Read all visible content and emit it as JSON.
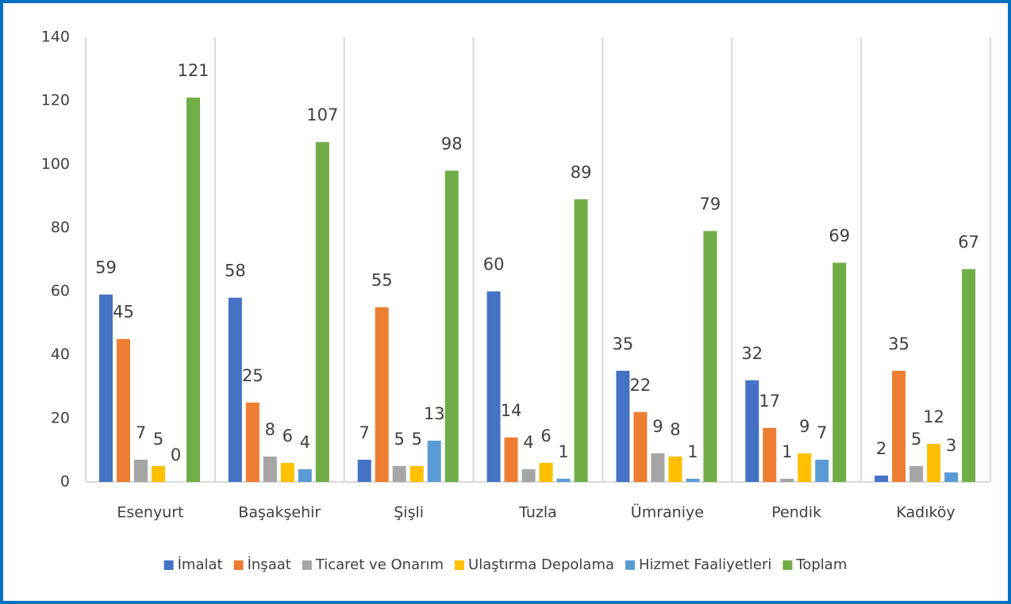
{
  "chart_data": {
    "type": "bar",
    "categories": [
      "Esenyurt",
      "Başakşehir",
      "Şişli",
      "Tuzla",
      "Ümraniye",
      "Pendik",
      "Kadıköy"
    ],
    "series": [
      {
        "name": "İmalat",
        "color": "#4472c4",
        "values": [
          59,
          58,
          7,
          60,
          35,
          32,
          2
        ]
      },
      {
        "name": "İnşaat",
        "color": "#ed7d31",
        "values": [
          45,
          25,
          55,
          14,
          22,
          17,
          35
        ]
      },
      {
        "name": "Ticaret ve Onarım",
        "color": "#a5a5a5",
        "values": [
          7,
          8,
          5,
          4,
          9,
          1,
          5
        ]
      },
      {
        "name": "Ulaştırma Depolama",
        "color": "#ffc000",
        "values": [
          5,
          6,
          5,
          6,
          8,
          9,
          12
        ]
      },
      {
        "name": "Hizmet Faaliyetleri",
        "color": "#5b9bd5",
        "values": [
          0,
          4,
          13,
          1,
          1,
          7,
          3
        ]
      },
      {
        "name": "Toplam",
        "color": "#70ad47",
        "values": [
          121,
          107,
          98,
          89,
          79,
          69,
          67
        ]
      }
    ],
    "ylim": [
      0,
      140
    ],
    "yticks": [
      0,
      20,
      40,
      60,
      80,
      100,
      120,
      140
    ],
    "grid": false,
    "legend": "bottom"
  }
}
